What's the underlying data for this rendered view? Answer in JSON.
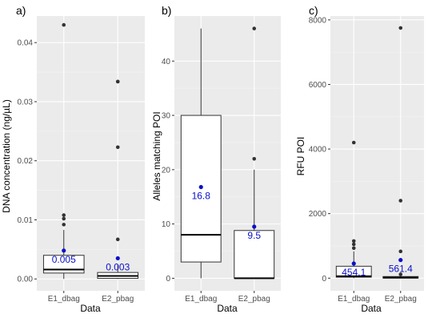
{
  "colors": {
    "panel_background": "#ebebeb",
    "grid": "#ffffff",
    "box_fill": "#ffffff",
    "box_stroke": "#333333",
    "outlier": "#333333",
    "mean": "#0a10c8"
  },
  "chart_data": [
    {
      "type": "boxplot",
      "panel_label": "a)",
      "title": "",
      "xlabel": "Data",
      "ylabel": "DNA concentration (ng/µL)",
      "categories": [
        "E1_dbag",
        "E2_pbag"
      ],
      "ylim": [
        -0.002,
        0.0445
      ],
      "yticks": [
        0.0,
        0.01,
        0.02,
        0.03,
        0.04
      ],
      "ytick_labels": [
        "0.00",
        "0.01",
        "0.02",
        "0.03",
        "0.04"
      ],
      "grid": true,
      "boxes": [
        {
          "category": "E1_dbag",
          "q1": 0.001,
          "median": 0.0016,
          "q3": 0.004,
          "whisker_low": 0.0,
          "whisker_high": 0.0083,
          "outliers": [
            0.0092,
            0.0102,
            0.0108,
            0.043
          ],
          "mean": 0.0048,
          "mean_label": "0.005"
        },
        {
          "category": "E2_pbag",
          "q1": 0.0001,
          "median": 0.0005,
          "q3": 0.0011,
          "whisker_low": 0.0,
          "whisker_high": 0.0024,
          "outliers": [
            0.0067,
            0.0223,
            0.0334,
            0.0334
          ],
          "mean": 0.0035,
          "mean_label": "0.003"
        }
      ]
    },
    {
      "type": "boxplot",
      "panel_label": "b)",
      "title": "",
      "xlabel": "Data",
      "ylabel": "Alleles matching POI",
      "categories": [
        "E1_dbag",
        "E2_pbag"
      ],
      "ylim": [
        -2.3,
        48.3
      ],
      "yticks": [
        0,
        10,
        20,
        30,
        40
      ],
      "ytick_labels": [
        "0",
        "10",
        "20",
        "30",
        "40"
      ],
      "grid": true,
      "boxes": [
        {
          "category": "E1_dbag",
          "q1": 3,
          "median": 8,
          "q3": 30,
          "whisker_low": 0,
          "whisker_high": 46,
          "outliers": [],
          "mean": 16.8,
          "mean_label": "16.8"
        },
        {
          "category": "E2_pbag",
          "q1": 0,
          "median": 0,
          "q3": 8.8,
          "whisker_low": 0,
          "whisker_high": 20,
          "outliers": [
            22,
            46
          ],
          "mean": 9.5,
          "mean_label": "9.5"
        }
      ]
    },
    {
      "type": "boxplot",
      "panel_label": "c)",
      "title": "",
      "xlabel": "Data",
      "ylabel": "RFU POI",
      "categories": [
        "E1_dbag",
        "E2_pbag"
      ],
      "ylim": [
        -390,
        8120
      ],
      "yticks": [
        0,
        2000,
        4000,
        6000,
        8000
      ],
      "ytick_labels": [
        "0",
        "2000",
        "4000",
        "6000",
        "8000"
      ],
      "grid": true,
      "boxes": [
        {
          "category": "E1_dbag",
          "q1": 30,
          "median": 60,
          "q3": 370,
          "whisker_low": 0,
          "whisker_high": 830,
          "outliers": [
            930,
            1050,
            1150,
            4200
          ],
          "mean": 454.1,
          "mean_label": "454.1"
        },
        {
          "category": "E2_pbag",
          "q1": 0,
          "median": 20,
          "q3": 50,
          "whisker_low": 0,
          "whisker_high": 80,
          "outliers": [
            120,
            830,
            2400,
            7750
          ],
          "mean": 561.4,
          "mean_label": "561.4"
        }
      ]
    }
  ]
}
